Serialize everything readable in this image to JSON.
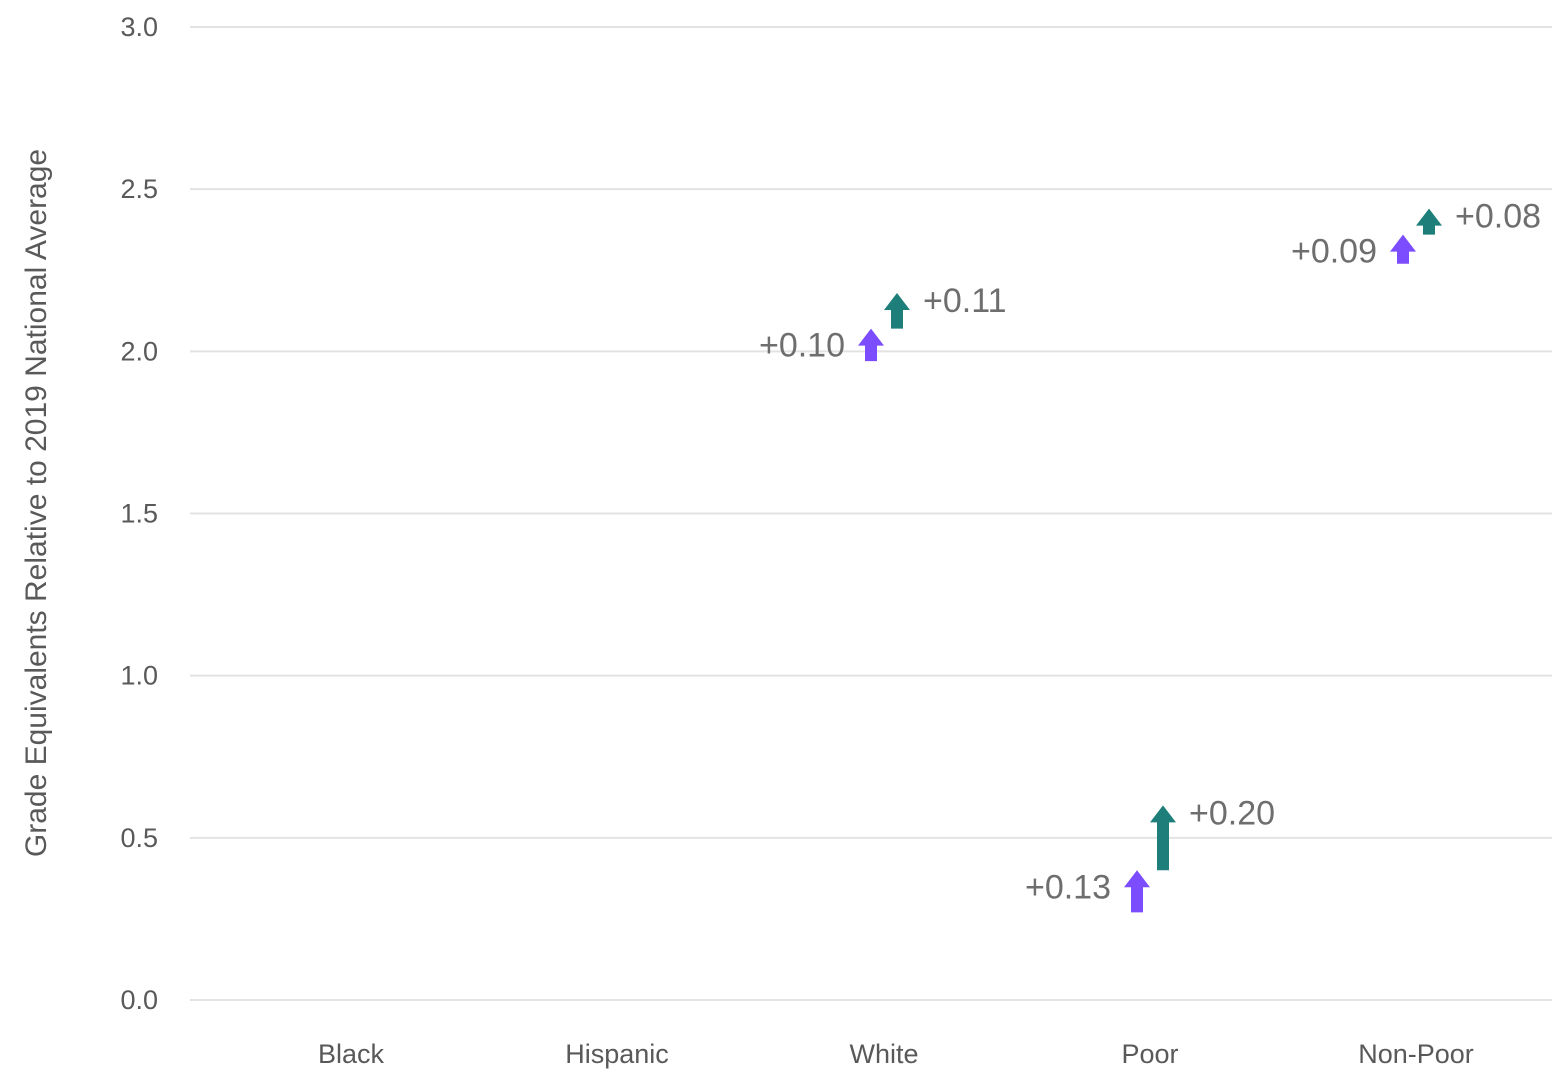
{
  "chart_data": {
    "type": "arrow",
    "ylabel": "Grade Equivalents Relative to 2019 National Average",
    "ylim": [
      0,
      3
    ],
    "yticks": [
      "0.0",
      "0.5",
      "1.0",
      "1.5",
      "2.0",
      "2.5",
      "3.0"
    ],
    "categories": [
      "Black",
      "Hispanic",
      "White",
      "Poor",
      "Non-Poor"
    ],
    "grid": true,
    "colors": {
      "purple": "#7c4dff",
      "teal": "#1e7f7a"
    },
    "series": [
      {
        "color": "#7c4dff",
        "arrows": [
          {
            "category": "White",
            "start": 1.97,
            "end": 2.07,
            "label": "+0.10"
          },
          {
            "category": "Poor",
            "start": 0.27,
            "end": 0.4,
            "label": "+0.13"
          },
          {
            "category": "Non-Poor",
            "start": 2.27,
            "end": 2.36,
            "label": "+0.09"
          }
        ]
      },
      {
        "color": "#1e7f7a",
        "arrows": [
          {
            "category": "White",
            "start": 2.07,
            "end": 2.18,
            "label": "+0.11"
          },
          {
            "category": "Poor",
            "start": 0.4,
            "end": 0.6,
            "label": "+0.20"
          },
          {
            "category": "Non-Poor",
            "start": 2.36,
            "end": 2.44,
            "label": "+0.08"
          }
        ]
      }
    ]
  }
}
